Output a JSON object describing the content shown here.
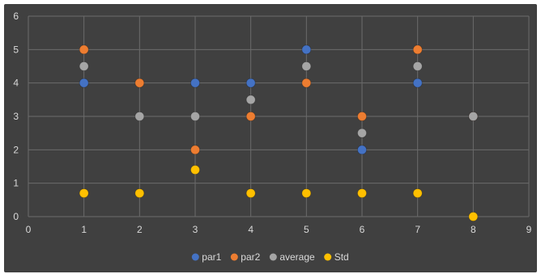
{
  "chart_data": {
    "type": "scatter",
    "xlim": [
      0,
      9
    ],
    "ylim": [
      0,
      6
    ],
    "x_ticks": [
      0,
      1,
      2,
      3,
      4,
      5,
      6,
      7,
      8,
      9
    ],
    "y_ticks": [
      0,
      1,
      2,
      3,
      4,
      5,
      6
    ],
    "grid": true,
    "legend_position": "bottom",
    "background": "#404040",
    "gridline_color": "#6b6b6b",
    "series": [
      {
        "name": "par1",
        "color": "#4472c4",
        "points": [
          [
            1,
            4
          ],
          [
            3,
            4
          ],
          [
            4,
            4
          ],
          [
            5,
            5
          ],
          [
            6,
            2
          ],
          [
            7,
            4
          ],
          [
            8,
            3
          ]
        ]
      },
      {
        "name": "par2",
        "color": "#ed7d31",
        "points": [
          [
            1,
            5
          ],
          [
            2,
            4
          ],
          [
            3,
            2
          ],
          [
            4,
            3
          ],
          [
            5,
            4
          ],
          [
            6,
            3
          ],
          [
            7,
            5
          ],
          [
            8,
            3
          ]
        ]
      },
      {
        "name": "average",
        "color": "#a5a5a5",
        "points": [
          [
            1,
            4.5
          ],
          [
            2,
            3
          ],
          [
            3,
            3
          ],
          [
            4,
            3.5
          ],
          [
            5,
            4.5
          ],
          [
            6,
            2.5
          ],
          [
            7,
            4.5
          ],
          [
            8,
            3
          ]
        ]
      },
      {
        "name": "Std",
        "color": "#ffc000",
        "points": [
          [
            1,
            0.7
          ],
          [
            2,
            0.7
          ],
          [
            3,
            1.4
          ],
          [
            4,
            0.7
          ],
          [
            5,
            0.7
          ],
          [
            6,
            0.7
          ],
          [
            7,
            0.7
          ],
          [
            8,
            0
          ]
        ]
      }
    ]
  }
}
